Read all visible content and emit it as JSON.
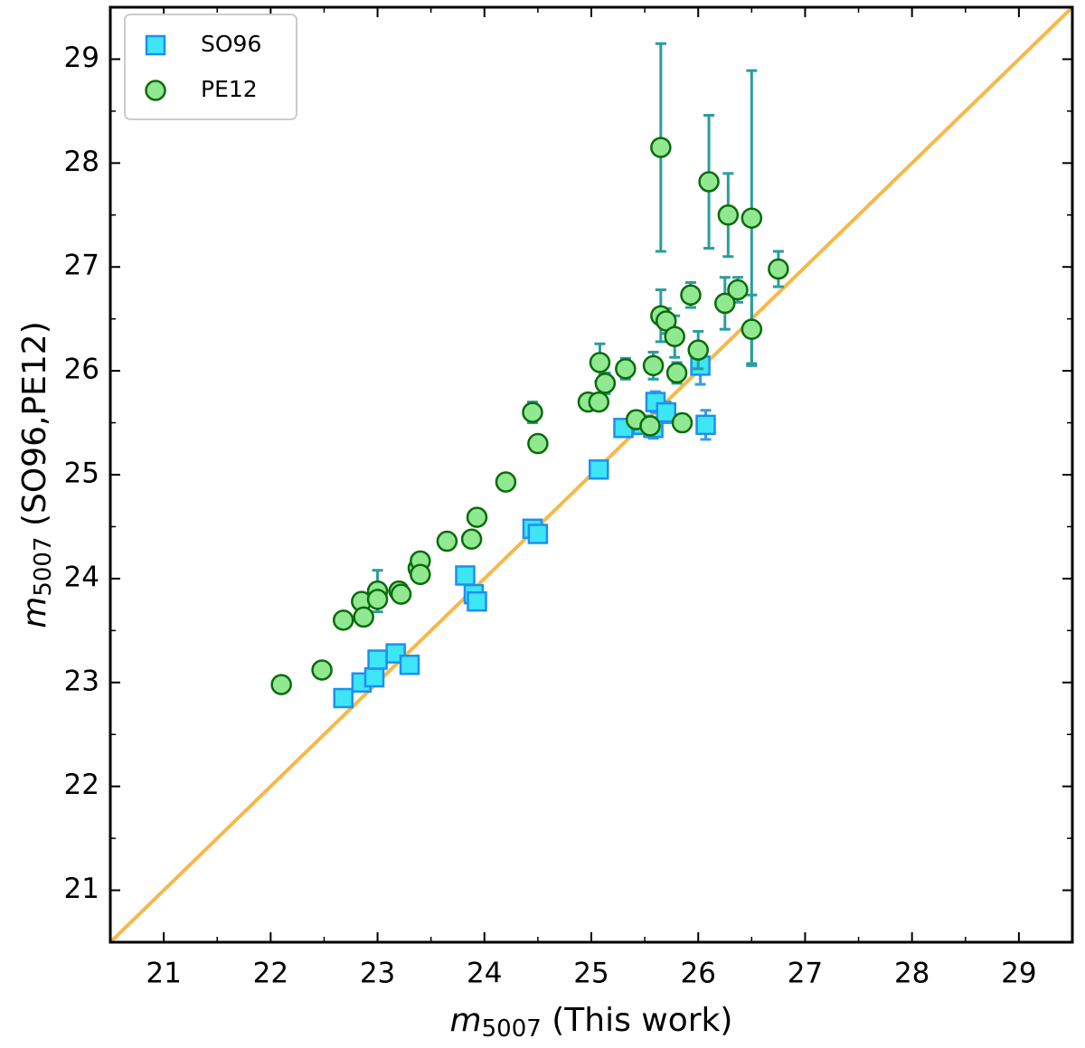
{
  "chart_data": {
    "type": "scatter",
    "xlabel": {
      "symbol": "m",
      "subscript": "5007",
      "rest": " (This work)"
    },
    "ylabel": {
      "symbol": "m",
      "subscript": "5007",
      "rest": " (SO96,PE12)"
    },
    "xlim": [
      20.5,
      29.5
    ],
    "ylim": [
      20.5,
      29.5
    ],
    "xticks": [
      21,
      22,
      23,
      24,
      25,
      26,
      27,
      28,
      29
    ],
    "yticks": [
      21,
      22,
      23,
      24,
      25,
      26,
      27,
      28,
      29
    ],
    "xminorticks": [
      21.5,
      22.5,
      23.5,
      24.5,
      25.5,
      26.5,
      27.5,
      28.5
    ],
    "yminorticks": [
      21.5,
      22.5,
      23.5,
      24.5,
      25.5,
      26.5,
      27.5,
      28.5
    ],
    "legend": "upper left",
    "reference_line": {
      "color": "#f7b84b",
      "x": [
        20.5,
        29.5
      ],
      "y": [
        20.5,
        29.5
      ]
    },
    "series": [
      {
        "name": "SO96",
        "marker": "square",
        "color": "#3de6f5",
        "edgecolor": "#1e8ff0",
        "errcolor": "#3a9be8",
        "x": [
          22.68,
          22.85,
          22.97,
          23.0,
          23.17,
          23.3,
          23.82,
          23.9,
          23.93,
          24.45,
          24.5,
          25.07,
          25.3,
          25.48,
          25.58,
          25.6,
          25.7,
          26.02,
          26.07
        ],
        "values": [
          22.85,
          23.0,
          23.05,
          23.22,
          23.28,
          23.17,
          24.03,
          23.85,
          23.78,
          24.48,
          24.43,
          25.05,
          25.45,
          25.48,
          25.45,
          25.7,
          25.6,
          26.05,
          25.48
        ],
        "yerr": [
          0.06,
          0.06,
          0.06,
          0.06,
          0.06,
          0.06,
          0.06,
          0.06,
          0.06,
          0.06,
          0.06,
          0.06,
          0.08,
          0.08,
          0.1,
          0.1,
          0.1,
          0.18,
          0.14
        ]
      },
      {
        "name": "PE12",
        "marker": "circle",
        "color": "#90e890",
        "edgecolor": "#0a6b0a",
        "errcolor": "#2a9d9d",
        "x": [
          22.1,
          22.48,
          22.68,
          22.85,
          22.87,
          23.0,
          23.0,
          23.2,
          23.22,
          23.38,
          23.4,
          23.4,
          23.65,
          23.88,
          23.93,
          24.2,
          24.45,
          24.5,
          24.97,
          25.07,
          25.08,
          25.13,
          25.32,
          25.42,
          25.58,
          25.55,
          25.65,
          25.65,
          25.7,
          25.78,
          25.8,
          25.85,
          25.93,
          26.0,
          26.1,
          26.25,
          26.28,
          26.37,
          26.5,
          26.5,
          26.75
        ],
        "values": [
          22.98,
          23.12,
          23.6,
          23.78,
          23.63,
          23.88,
          23.8,
          23.88,
          23.85,
          24.1,
          24.17,
          24.04,
          24.36,
          24.38,
          24.59,
          24.93,
          25.6,
          25.3,
          25.7,
          25.7,
          26.08,
          25.88,
          26.02,
          25.53,
          26.05,
          25.47,
          28.15,
          26.53,
          26.48,
          26.33,
          25.98,
          25.5,
          26.73,
          26.2,
          27.82,
          26.65,
          27.5,
          26.78,
          27.47,
          26.4,
          26.98
        ],
        "yerr": [
          0.04,
          0.04,
          0.05,
          0.05,
          0.05,
          0.2,
          0.06,
          0.06,
          0.06,
          0.06,
          0.06,
          0.06,
          0.05,
          0.05,
          0.05,
          0.05,
          0.1,
          0.06,
          0.06,
          0.08,
          0.18,
          0.1,
          0.1,
          0.08,
          0.13,
          0.08,
          1.0,
          0.25,
          0.12,
          0.2,
          0.1,
          0.08,
          0.12,
          0.18,
          0.64,
          0.25,
          0.4,
          0.12,
          1.42,
          0.33,
          0.17
        ]
      }
    ]
  }
}
